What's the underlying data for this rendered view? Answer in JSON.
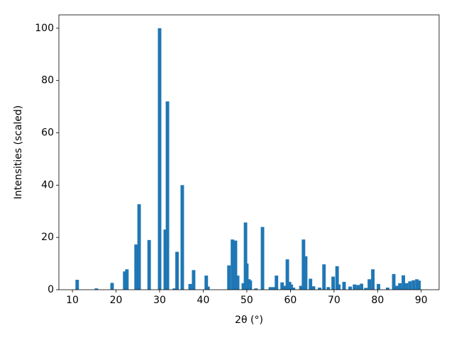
{
  "chart_data": {
    "type": "bar",
    "xlabel": "2θ (°)",
    "ylabel": "Intensities (scaled)",
    "x": [
      11.1,
      15.5,
      19.1,
      22.0,
      22.5,
      24.6,
      25.3,
      27.6,
      30.0,
      31.3,
      31.8,
      33.4,
      34.0,
      35.2,
      37.0,
      37.8,
      40.7,
      41.1,
      45.9,
      46.7,
      47.4,
      47.9,
      49.2,
      49.7,
      50.0,
      50.5,
      50.8,
      52.1,
      53.6,
      55.4,
      56.2,
      56.8,
      58.1,
      58.6,
      59.3,
      59.8,
      60.2,
      60.7,
      62.4,
      63.0,
      63.5,
      64.6,
      65.3,
      66.7,
      67.7,
      68.7,
      69.8,
      70.7,
      71.1,
      72.3,
      73.7,
      74.7,
      75.5,
      76.3,
      77.3,
      78.1,
      78.9,
      80.2,
      82.3,
      83.7,
      84.4,
      85.1,
      85.9,
      86.6,
      87.4,
      88.2,
      89.0,
      89.5
    ],
    "values": [
      3.8,
      0.5,
      2.6,
      7.0,
      7.8,
      17.3,
      32.7,
      19.0,
      100,
      23.0,
      72.0,
      0.5,
      14.5,
      40.0,
      2.2,
      7.5,
      5.4,
      1.2,
      9.3,
      19.2,
      18.8,
      5.4,
      2.5,
      25.7,
      10.0,
      4.0,
      3.5,
      0.5,
      24.0,
      1.0,
      1.0,
      5.4,
      2.8,
      1.5,
      11.6,
      3.0,
      2.0,
      0.8,
      1.5,
      19.2,
      12.8,
      4.2,
      1.3,
      0.8,
      9.7,
      1.0,
      5.0,
      9.0,
      2.0,
      3.0,
      1.2,
      2.0,
      1.8,
      2.3,
      0.7,
      4.0,
      7.8,
      2.2,
      0.8,
      6.0,
      1.5,
      2.5,
      5.5,
      2.5,
      3.2,
      3.6,
      4.0,
      3.5
    ],
    "color": "#1f77b4",
    "xlim": [
      6.9,
      94.1
    ],
    "xticks": [
      10,
      20,
      30,
      40,
      50,
      60,
      70,
      80,
      90
    ],
    "ylim": [
      0,
      105.1
    ],
    "yticks": [
      0,
      20,
      40,
      60,
      80,
      100
    ]
  }
}
